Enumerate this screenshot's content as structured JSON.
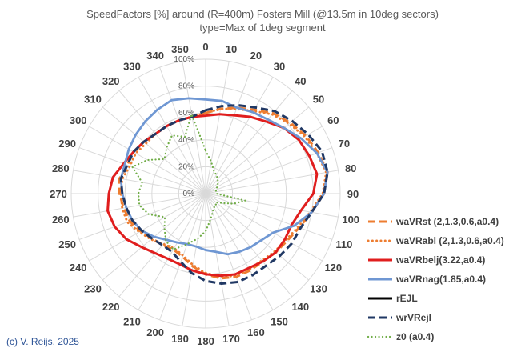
{
  "chart_data": {
    "type": "radar",
    "title": "SpeedFactors [%] around (R=400m) Fosters Mill (@13.5m in 10deg sectors)",
    "subtitle": "type=Max of 1deg segment",
    "angles": [
      0,
      10,
      20,
      30,
      40,
      50,
      60,
      70,
      80,
      90,
      100,
      110,
      120,
      130,
      140,
      150,
      160,
      170,
      180,
      190,
      200,
      210,
      220,
      230,
      240,
      250,
      260,
      270,
      280,
      290,
      300,
      310,
      320,
      330,
      340,
      350
    ],
    "radial_ticks": [
      "0%",
      "20%",
      "40%",
      "60%",
      "80%",
      "100%"
    ],
    "rmax": 100,
    "series": [
      {
        "name": "waVRst (2,1.3,0.6,a0.4)",
        "color": "#ed7d31",
        "dash": "dash",
        "values": [
          60,
          64,
          68,
          72,
          78,
          82,
          86,
          89,
          92,
          88,
          80,
          74,
          70,
          68,
          66,
          66,
          66,
          64,
          60,
          55,
          50,
          48,
          50,
          52,
          56,
          60,
          62,
          64,
          65,
          62,
          62,
          60,
          58,
          58,
          58,
          58
        ]
      },
      {
        "name": "waVRabl (2,1.3,0.6,a0.4)",
        "color": "#ed7d31",
        "dash": "dot",
        "values": [
          60,
          64,
          67,
          71,
          77,
          81,
          85,
          88,
          91,
          87,
          79,
          73,
          69,
          67,
          65,
          65,
          65,
          63,
          59,
          54,
          49,
          47,
          49,
          53,
          57,
          62,
          63,
          63,
          63,
          60,
          60,
          58,
          58,
          58,
          58,
          58
        ]
      },
      {
        "name": "waVRbelj(3.22,a0.4)",
        "color": "#e01e1e",
        "dash": "solid",
        "values": [
          58,
          60,
          62,
          66,
          70,
          76,
          80,
          82,
          84,
          80,
          72,
          68,
          68,
          68,
          66,
          64,
          64,
          62,
          60,
          58,
          56,
          56,
          58,
          62,
          68,
          72,
          74,
          72,
          70,
          65,
          62,
          60,
          58,
          58,
          58,
          58
        ]
      },
      {
        "name": "waVRnag(1.85,a0.4)",
        "color": "#6f97d3",
        "dash": "solid",
        "values": [
          70,
          70,
          68,
          70,
          72,
          76,
          82,
          88,
          92,
          88,
          80,
          70,
          58,
          54,
          52,
          50,
          48,
          44,
          42,
          40,
          40,
          42,
          45,
          50,
          55,
          58,
          60,
          62,
          64,
          64,
          66,
          68,
          70,
          72,
          74,
          72
        ]
      },
      {
        "name": "rEJL",
        "color": "#000000",
        "dash": "solid",
        "values": []
      },
      {
        "name": "wrVRejl",
        "color": "#203864",
        "dash": "dash",
        "values": [
          62,
          66,
          70,
          74,
          80,
          84,
          88,
          92,
          92,
          88,
          80,
          75,
          74,
          72,
          70,
          70,
          70,
          68,
          65,
          60,
          54,
          50,
          50,
          52,
          55,
          58,
          60,
          62,
          64,
          62,
          62,
          60,
          58,
          58,
          58,
          58
        ]
      },
      {
        "name": "z0 (a0.4)",
        "color": "#70ad47",
        "dash": "dot",
        "values": [
          32,
          24,
          18,
          16,
          14,
          12,
          10,
          8,
          8,
          8,
          30,
          22,
          14,
          10,
          12,
          12,
          15,
          20,
          28,
          34,
          40,
          48,
          46,
          40,
          35,
          45,
          50,
          50,
          48,
          58,
          50,
          40,
          45,
          50,
          45,
          60
        ]
      }
    ]
  },
  "legend": {
    "items": [
      {
        "label": "waVRst (2,1.3,0.6,a0.4)"
      },
      {
        "label": "waVRabl (2,1.3,0.6,a0.4)"
      },
      {
        "label": "waVRbelj(3.22,a0.4)"
      },
      {
        "label": "waVRnag(1.85,a0.4)"
      },
      {
        "label": "rEJL"
      },
      {
        "label": "wrVRejl"
      },
      {
        "label": "z0 (a0.4)"
      }
    ]
  },
  "credit": "(c) V. Reijs, 2025"
}
